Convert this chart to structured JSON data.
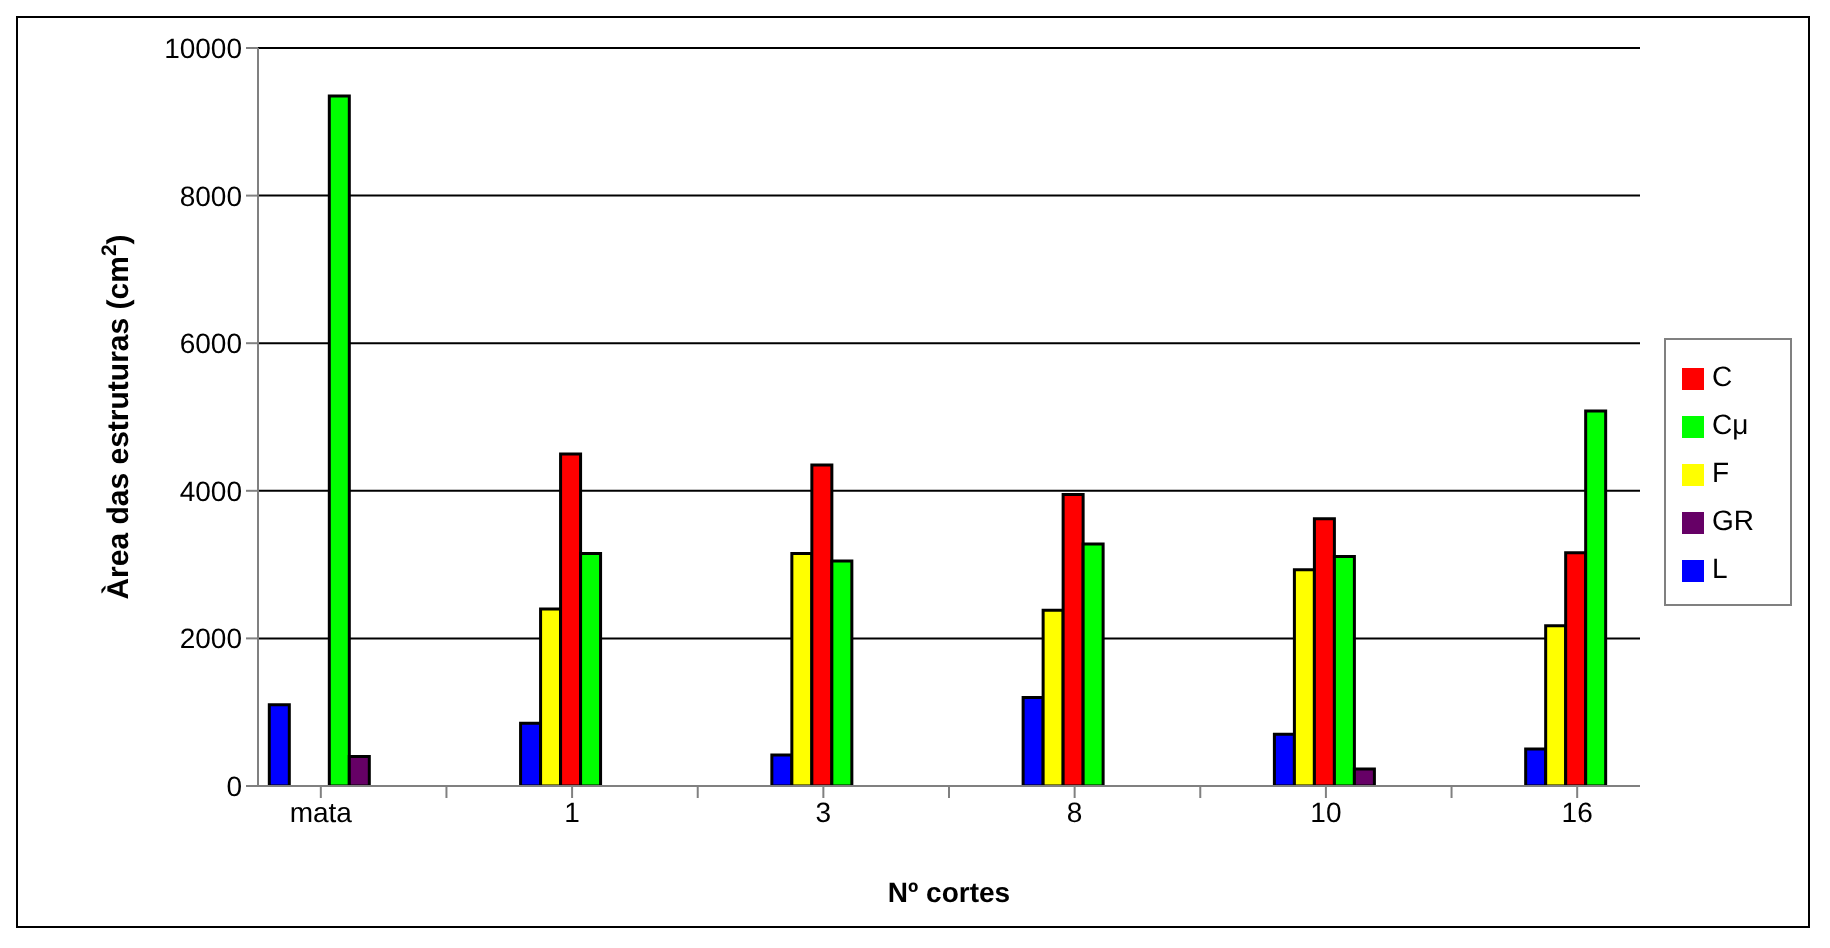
{
  "chart_data": {
    "type": "bar",
    "xlabel": "Nº cortes",
    "ylabel": "Àrea das estruturas (cm$^{2}$)",
    "categories": [
      "mata",
      null,
      "1",
      null,
      "3",
      null,
      "8",
      null,
      "10",
      null,
      "16"
    ],
    "series": [
      {
        "name": "L",
        "color": "#0000ff",
        "values": [
          1100,
          null,
          850,
          null,
          420,
          null,
          1200,
          null,
          700,
          null,
          500
        ]
      },
      {
        "name": "F",
        "color": "#ffff00",
        "values": [
          null,
          null,
          2400,
          null,
          3150,
          null,
          2380,
          null,
          2930,
          null,
          2170
        ]
      },
      {
        "name": "C",
        "color": "#ff0000",
        "values": [
          null,
          null,
          4500,
          null,
          4350,
          null,
          3950,
          null,
          3620,
          null,
          3160
        ]
      },
      {
        "name": "Cμ",
        "color": "#00ff00",
        "values": [
          9350,
          null,
          3150,
          null,
          3050,
          null,
          3280,
          null,
          3110,
          null,
          5080
        ]
      },
      {
        "name": "GR",
        "color": "#660066",
        "values": [
          400,
          null,
          null,
          null,
          null,
          null,
          null,
          null,
          230,
          null,
          null
        ]
      }
    ],
    "ylim": [
      0,
      10000
    ],
    "yticks": [
      0,
      2000,
      4000,
      6000,
      8000,
      10000
    ],
    "grid": "y",
    "legend": "right"
  }
}
